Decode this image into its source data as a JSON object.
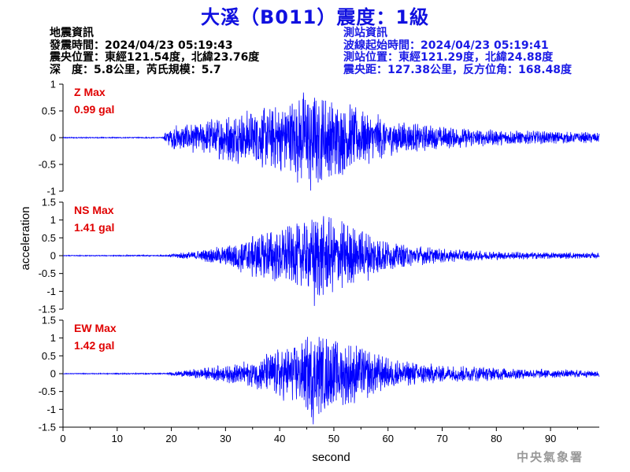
{
  "header": {
    "title": "大溪（B011）震度：1級",
    "left_info": [
      "地震資訊",
      "發震時間：2024/04/23 05:19:43",
      "震央位置：東經121.54度，北緯23.76度",
      "深　度：5.8公里，芮氏規模：5.7"
    ],
    "right_info": [
      "測站資訊",
      "波線起始時間：2024/04/23 05:19:41",
      "測站位置：東經121.29度，北緯24.88度",
      "震央距：127.38公里，反方位角：168.48度"
    ]
  },
  "footer": {
    "agency": "中央氣象署"
  },
  "colors": {
    "trace": "#0000ff",
    "title": "#1010e0",
    "max_label": "#e00000"
  },
  "chart_data": {
    "type": "line",
    "xlabel": "second",
    "ylabel": "acceleration",
    "xlim": [
      0,
      99
    ],
    "xticks": [
      0,
      10,
      20,
      30,
      40,
      50,
      60,
      70,
      80,
      90
    ],
    "panels": [
      {
        "name": "Z",
        "max_label": "Z Max",
        "max_value": "0.99 gal",
        "ylim": [
          -1,
          1
        ],
        "yticks": [
          -1,
          -0.5,
          0,
          0.5,
          1
        ],
        "ytick_labels": [
          "-1",
          "-0.5",
          "0",
          "0.5",
          "1"
        ],
        "envelope": [
          [
            0,
            0.01
          ],
          [
            18.5,
            0.01
          ],
          [
            19,
            0.15
          ],
          [
            21,
            0.25
          ],
          [
            25,
            0.3
          ],
          [
            30,
            0.45
          ],
          [
            35,
            0.55
          ],
          [
            40,
            0.65
          ],
          [
            45,
            0.95
          ],
          [
            47,
            0.9
          ],
          [
            50,
            0.8
          ],
          [
            55,
            0.55
          ],
          [
            60,
            0.38
          ],
          [
            65,
            0.28
          ],
          [
            70,
            0.22
          ],
          [
            80,
            0.15
          ],
          [
            90,
            0.12
          ],
          [
            99,
            0.1
          ]
        ],
        "peak": [
          45.7,
          -0.99
        ]
      },
      {
        "name": "NS",
        "max_label": "NS Max",
        "max_value": "1.41 gal",
        "ylim": [
          -1.5,
          1.5
        ],
        "yticks": [
          -1.5,
          -1,
          -0.5,
          0,
          0.5,
          1,
          1.5
        ],
        "ytick_labels": [
          "-1.5",
          "-1",
          "-0.5",
          "0",
          "0.5",
          "1",
          "1.5"
        ],
        "envelope": [
          [
            0,
            0.01
          ],
          [
            19,
            0.02
          ],
          [
            21,
            0.08
          ],
          [
            25,
            0.15
          ],
          [
            30,
            0.3
          ],
          [
            35,
            0.7
          ],
          [
            40,
            0.8
          ],
          [
            45,
            1.0
          ],
          [
            47,
            1.25
          ],
          [
            50,
            1.1
          ],
          [
            55,
            0.8
          ],
          [
            60,
            0.45
          ],
          [
            65,
            0.3
          ],
          [
            70,
            0.2
          ],
          [
            80,
            0.12
          ],
          [
            90,
            0.1
          ],
          [
            99,
            0.08
          ]
        ],
        "peak": [
          46.4,
          -1.41
        ]
      },
      {
        "name": "EW",
        "max_label": "EW Max",
        "max_value": "1.42 gal",
        "ylim": [
          -1.5,
          1.5
        ],
        "yticks": [
          -1.5,
          -1,
          -0.5,
          0,
          0.5,
          1,
          1.5
        ],
        "ytick_labels": [
          "-1.5",
          "-1",
          "-0.5",
          "0",
          "0.5",
          "1",
          "1.5"
        ],
        "envelope": [
          [
            0,
            0.01
          ],
          [
            19,
            0.02
          ],
          [
            21,
            0.08
          ],
          [
            25,
            0.15
          ],
          [
            30,
            0.25
          ],
          [
            35,
            0.4
          ],
          [
            40,
            0.75
          ],
          [
            44,
            0.9
          ],
          [
            46,
            1.3
          ],
          [
            48,
            1.15
          ],
          [
            51,
            1.0
          ],
          [
            55,
            0.8
          ],
          [
            60,
            0.45
          ],
          [
            65,
            0.35
          ],
          [
            70,
            0.25
          ],
          [
            80,
            0.2
          ],
          [
            90,
            0.12
          ],
          [
            99,
            0.1
          ]
        ],
        "peak": [
          46.2,
          -1.42
        ]
      }
    ]
  }
}
